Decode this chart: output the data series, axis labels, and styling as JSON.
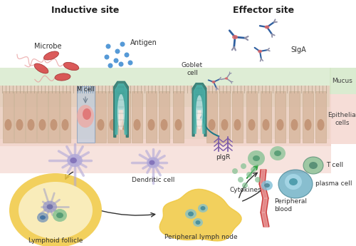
{
  "title_inductive": "Inductive site",
  "title_effector": "Effector site",
  "label_microbe": "Microbe",
  "label_antigen": "Antigen",
  "label_mcell": "M cell",
  "label_goblet": "Goblet\ncell",
  "label_dendritic": "Dendritic cell",
  "label_sigA": "SIgA",
  "label_mucus": "Mucus",
  "label_epithelial": "Epithelial\ncells",
  "label_pIgR": "pIgR",
  "label_cytokines": "Cytokines",
  "label_plasma": "plasma cell",
  "label_tcell": "T cell",
  "label_lymphoid": "Lymphoid follicle",
  "label_peripheral_lymph": "Peripheral lymph node",
  "label_peripheral_blood": "Peripheral\nblood",
  "color_bg": "#ffffff",
  "color_mucus_layer": "#d4e8c8",
  "color_epi_layer": "#e8c8b8",
  "color_submucosa": "#f5d8d0",
  "color_cell_body": "#d8b8a0",
  "color_cell_nucleus": "#c09070",
  "color_goblet_teal": "#4ab8b0",
  "color_goblet_dark": "#2a7870",
  "color_mcell_blue": "#b0cce8",
  "color_mcell_pink": "#f0a8a0",
  "color_dendritic": "#b0a8d8",
  "color_lymphoid_outer": "#f0c840",
  "color_lymphoid_inner": "#faeec0",
  "color_bcell_purple": "#9898c8",
  "color_tcell_green": "#80c090",
  "color_plasma_teal": "#60a8c0",
  "color_microbe_red": "#d84848",
  "color_antigen_blue": "#3888d0",
  "color_arrow_black": "#303030",
  "color_arrow_green": "#30a040",
  "color_arrow_teal": "#207888",
  "color_sigA_dark": "#3060a0",
  "color_sigA_gray": "#9090a8",
  "color_pIgR_purple": "#7858a8",
  "color_blood_red": "#c83030",
  "color_blood_pink": "#f0b0b0"
}
